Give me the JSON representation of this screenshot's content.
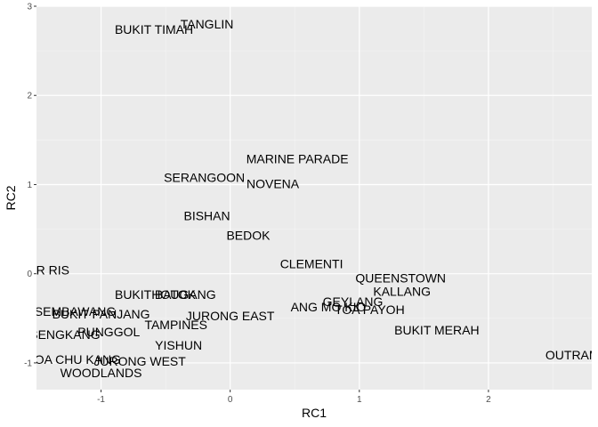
{
  "chart_data": {
    "type": "scatter",
    "title": "",
    "xlabel": "RC1",
    "ylabel": "RC2",
    "xlim": [
      -1.5,
      2.8
    ],
    "ylim": [
      -1.3,
      3.0
    ],
    "x_ticks": [
      -1,
      0,
      1,
      2
    ],
    "y_ticks": [
      -1,
      0,
      1,
      2,
      3
    ],
    "x_tick_labels": [
      "-1",
      "0",
      "1",
      "2"
    ],
    "y_tick_labels": [
      "-1",
      "0",
      "1",
      "2",
      "3"
    ],
    "grid": true,
    "points": [
      {
        "label": "TANGLIN",
        "x": -0.18,
        "y": 2.8
      },
      {
        "label": "BUKIT TIMAH",
        "x": -0.59,
        "y": 2.74
      },
      {
        "label": "MARINE PARADE",
        "x": 0.52,
        "y": 1.29
      },
      {
        "label": "SERANGOON",
        "x": -0.2,
        "y": 1.08
      },
      {
        "label": "NOVENA",
        "x": 0.33,
        "y": 1.01
      },
      {
        "label": "BISHAN",
        "x": -0.18,
        "y": 0.65
      },
      {
        "label": "BEDOK",
        "x": 0.14,
        "y": 0.43
      },
      {
        "label": "CLEMENTI",
        "x": 0.63,
        "y": 0.11
      },
      {
        "label": "PASIR RIS",
        "x": -1.48,
        "y": 0.04
      },
      {
        "label": "QUEENSTOWN",
        "x": 1.32,
        "y": -0.05
      },
      {
        "label": "KALLANG",
        "x": 1.33,
        "y": -0.2
      },
      {
        "label": "BUKIT BATOK",
        "x": -0.58,
        "y": -0.23
      },
      {
        "label": "HOUGANG",
        "x": -0.36,
        "y": -0.23
      },
      {
        "label": "GEYLANG",
        "x": 0.95,
        "y": -0.31
      },
      {
        "label": "ANG MO KIO",
        "x": 0.76,
        "y": -0.37
      },
      {
        "label": "TOA PAYOH",
        "x": 1.08,
        "y": -0.4
      },
      {
        "label": "SEMBAWANG",
        "x": -1.2,
        "y": -0.42
      },
      {
        "label": "BUKIT PANJANG",
        "x": -1.0,
        "y": -0.45
      },
      {
        "label": "JURONG EAST",
        "x": 0.0,
        "y": -0.47
      },
      {
        "label": "TAMPINES",
        "x": -0.42,
        "y": -0.57
      },
      {
        "label": "BUKIT MERAH",
        "x": 1.6,
        "y": -0.63
      },
      {
        "label": "SENGKANG",
        "x": -1.28,
        "y": -0.68
      },
      {
        "label": "PUNGGOL",
        "x": -0.94,
        "y": -0.65
      },
      {
        "label": "YISHUN",
        "x": -0.4,
        "y": -0.8
      },
      {
        "label": "OUTRAM",
        "x": 2.65,
        "y": -0.91
      },
      {
        "label": "CHOA CHU KANG",
        "x": -1.25,
        "y": -0.96
      },
      {
        "label": "JURONG WEST",
        "x": -0.7,
        "y": -0.98
      },
      {
        "label": "WOODLANDS",
        "x": -1.0,
        "y": -1.11
      }
    ]
  }
}
